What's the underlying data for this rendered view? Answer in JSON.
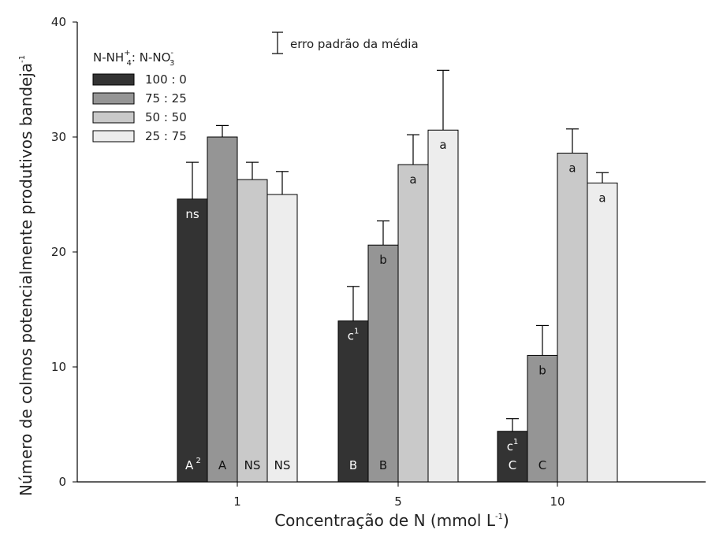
{
  "chart_data": {
    "type": "bar",
    "ylabel": "Número de colmos potencialmente produtivos bandeja",
    "ylabel_sup": "-1",
    "xlabel": "Concentração de N (mmol L",
    "xlabel_sup": "-1",
    "xlabel_end": ")",
    "ylim": [
      0,
      40
    ],
    "yticks": [
      0,
      10,
      20,
      30,
      40
    ],
    "categories": [
      "1",
      "5",
      "10"
    ],
    "legend_title": {
      "p1": "N-NH",
      "p1_sub": "4",
      "p1_sup": "+",
      "p2": ": N-NO",
      "p2_sub": "3",
      "p2_sup": "-"
    },
    "error_legend": "erro padrão da média",
    "series": [
      {
        "name": "100 : 0",
        "color": "#333333",
        "values": [
          24.6,
          14.0,
          4.4
        ],
        "errors": [
          3.2,
          3.0,
          1.1
        ]
      },
      {
        "name": "75 : 25",
        "color": "#959595",
        "values": [
          30.0,
          20.6,
          11.0
        ],
        "errors": [
          1.0,
          2.1,
          2.6
        ]
      },
      {
        "name": "50 : 50",
        "color": "#c9c9c9",
        "values": [
          26.3,
          27.6,
          28.6
        ],
        "errors": [
          1.5,
          2.6,
          2.1
        ]
      },
      {
        "name": "25 : 75",
        "color": "#ededed",
        "values": [
          25.0,
          30.6,
          26.0
        ],
        "errors": [
          2.0,
          5.2,
          0.9
        ]
      }
    ],
    "top_labels": [
      [
        "ns",
        "",
        "",
        ""
      ],
      [
        "c",
        "b",
        "a",
        "a"
      ],
      [
        "c",
        "b",
        "a",
        "a"
      ]
    ],
    "top_label_sups": [
      [
        "",
        "",
        "",
        ""
      ],
      [
        "1",
        "",
        "",
        ""
      ],
      [
        "1",
        "",
        "",
        ""
      ]
    ],
    "bottom_labels": [
      [
        "A",
        "A",
        "NS",
        "NS"
      ],
      [
        "B",
        "B",
        "",
        ""
      ],
      [
        "C",
        "C",
        "",
        ""
      ]
    ],
    "bottom_label_sups": [
      [
        "2",
        "",
        "",
        ""
      ],
      [
        "",
        "",
        "",
        ""
      ],
      [
        "",
        "",
        "",
        ""
      ]
    ]
  }
}
